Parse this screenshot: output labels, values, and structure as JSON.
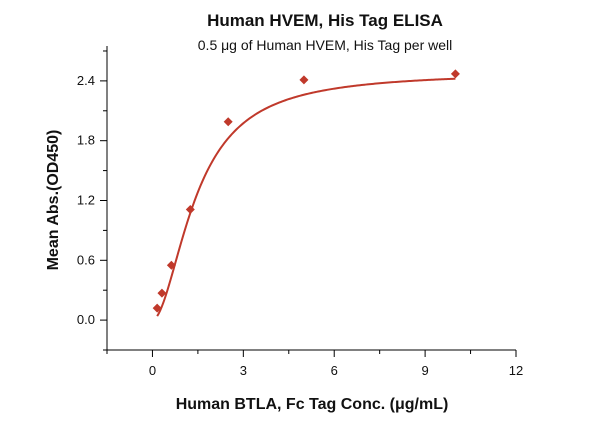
{
  "chart_data": {
    "type": "scatter",
    "title": "Human HVEM, His Tag ELISA",
    "subtitle": "0.5 μg of Human HVEM, His Tag per well",
    "xlabel": "Human BTLA, Fc Tag Conc. (μg/mL)",
    "ylabel": "Mean Abs.(OD450)",
    "xlim": [
      -1.5,
      12
    ],
    "ylim": [
      -0.3,
      2.75
    ],
    "xticks": [
      "0",
      "3",
      "6",
      "9",
      "12"
    ],
    "yticks": [
      "0.0",
      "0.6",
      "1.2",
      "1.8",
      "2.4"
    ],
    "grid": false,
    "series": [
      {
        "points": [
          {
            "x": 0.156,
            "y": 0.12
          },
          {
            "x": 0.313,
            "y": 0.27
          },
          {
            "x": 0.625,
            "y": 0.55
          },
          {
            "x": 1.25,
            "y": 1.11
          },
          {
            "x": 2.5,
            "y": 1.99
          },
          {
            "x": 5,
            "y": 2.41
          },
          {
            "x": 10,
            "y": 2.47
          }
        ],
        "marker": "diamond",
        "color": "#c0392b",
        "fit": "4PL",
        "fit_color": "#c0392b"
      }
    ]
  }
}
